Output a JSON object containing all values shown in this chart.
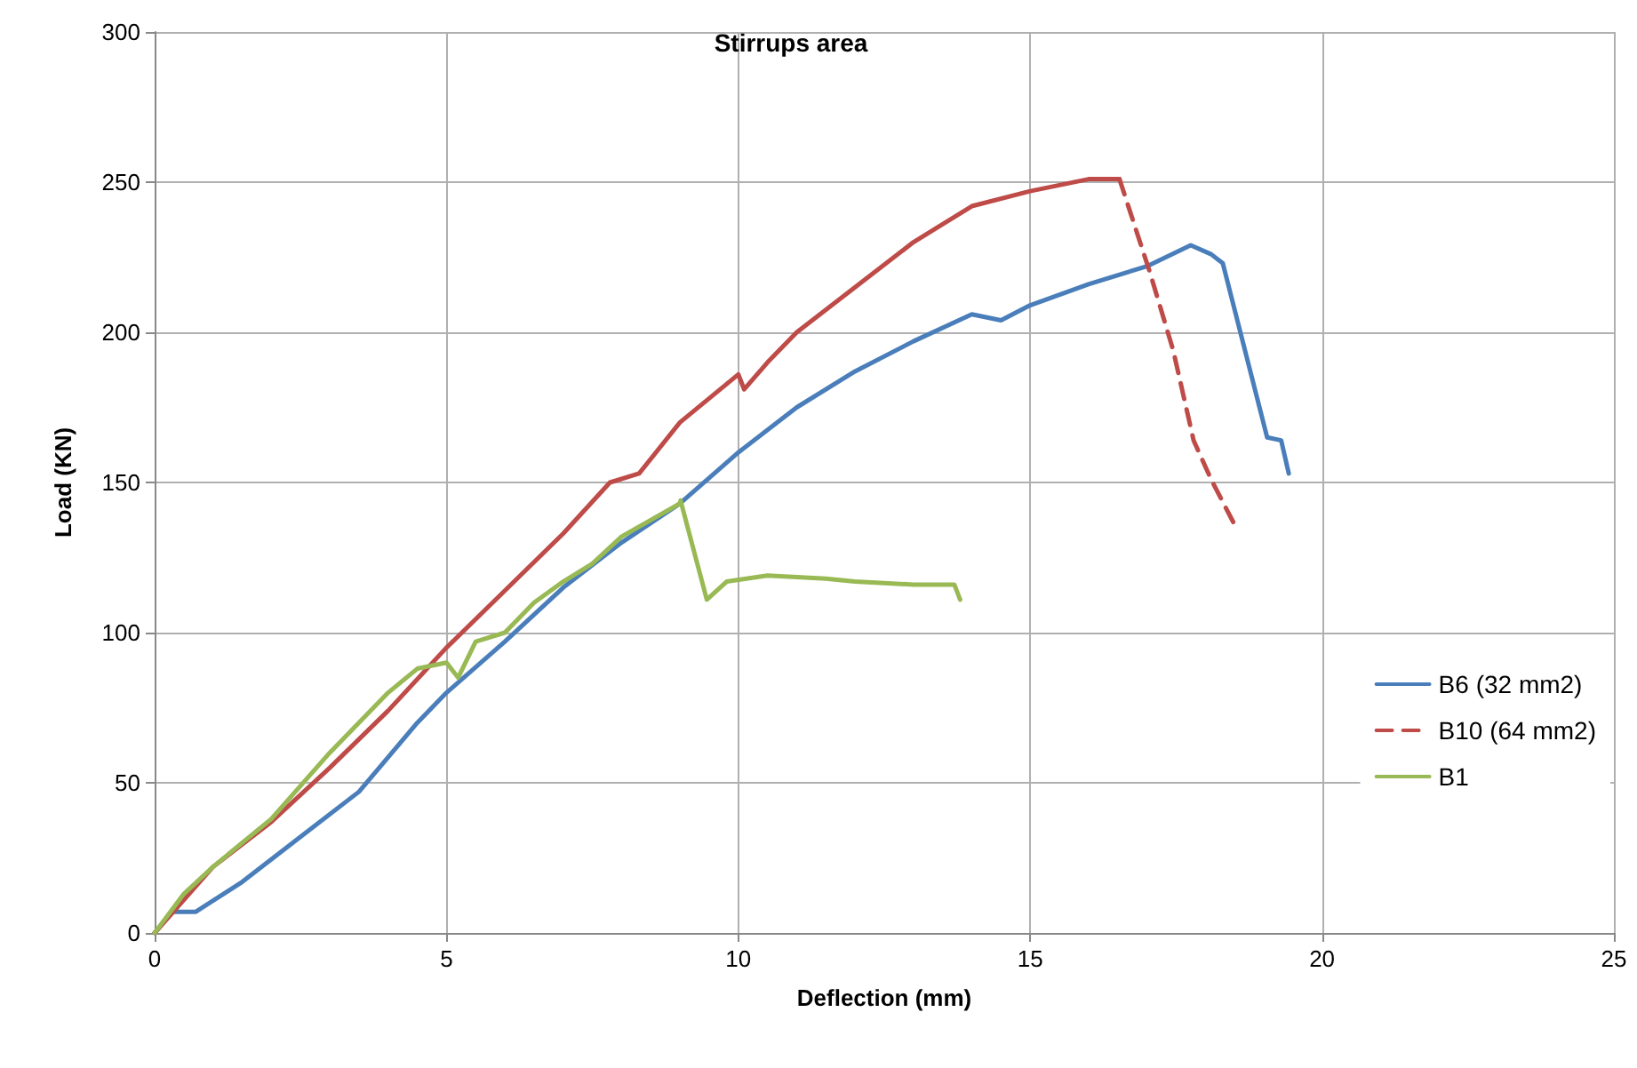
{
  "chart_data": {
    "type": "line",
    "title": "Stirrups area",
    "xlabel": "Deflection (mm)",
    "ylabel": "Load (KN)",
    "xlim": [
      0,
      25
    ],
    "xticks": [
      0,
      5,
      10,
      15,
      20,
      25
    ],
    "ylim": [
      0,
      300
    ],
    "yticks": [
      0,
      50,
      100,
      150,
      200,
      250,
      300
    ],
    "grid": true,
    "legend": "right",
    "marker": "none",
    "series": [
      {
        "name": "B6 (32 mm2)",
        "color": "#4a7ebb",
        "line_style": "solid",
        "x": [
          0,
          0.3,
          0.7,
          1.5,
          2.5,
          3.5,
          4.5,
          5,
          6,
          7,
          8,
          9,
          10,
          11,
          12,
          13,
          14,
          14.5,
          15,
          16,
          17,
          17.75,
          18.1,
          18.3,
          19.06,
          19.3,
          19.43
        ],
        "values": [
          0,
          7,
          7,
          17,
          32,
          47,
          70,
          80,
          97,
          115,
          130,
          143,
          160,
          175,
          187,
          197,
          206,
          204,
          209,
          216,
          222,
          229,
          226,
          223,
          165,
          164,
          153
        ]
      },
      {
        "color": "#be4b48",
        "line_style": "solid",
        "x": [
          0,
          1,
          2,
          3,
          4,
          5,
          6,
          7,
          7.8,
          8.3,
          9,
          10,
          10.1,
          10.5,
          11,
          12,
          13,
          14,
          15,
          16,
          16.53
        ],
        "values": [
          0,
          22,
          37,
          55,
          74,
          95,
          114,
          133,
          150,
          153,
          170,
          186,
          181,
          190,
          200,
          215,
          230,
          242,
          247,
          251,
          251
        ]
      },
      {
        "name": "B10 (64 mm2)",
        "color": "#be4b48",
        "line_style": "dashed",
        "x": [
          16.53,
          17.05,
          17.45,
          17.8,
          18.1,
          18.5
        ],
        "values": [
          251,
          220,
          194,
          164,
          151,
          136
        ]
      },
      {
        "name": "B1",
        "color": "#98b954",
        "line_style": "solid",
        "x": [
          0,
          0.5,
          1,
          2,
          3,
          4,
          4.5,
          5,
          5.2,
          5.5,
          6,
          6.5,
          7,
          7.5,
          8,
          9,
          9.01,
          9.46,
          9.8,
          10.5,
          11.5,
          12,
          13,
          13.7,
          13.8
        ],
        "values": [
          0,
          13,
          22,
          38,
          60,
          80,
          88,
          90,
          85,
          97,
          100,
          110,
          117,
          123,
          132,
          143,
          144,
          111,
          117,
          119,
          118,
          117,
          116,
          116,
          111
        ]
      }
    ]
  }
}
